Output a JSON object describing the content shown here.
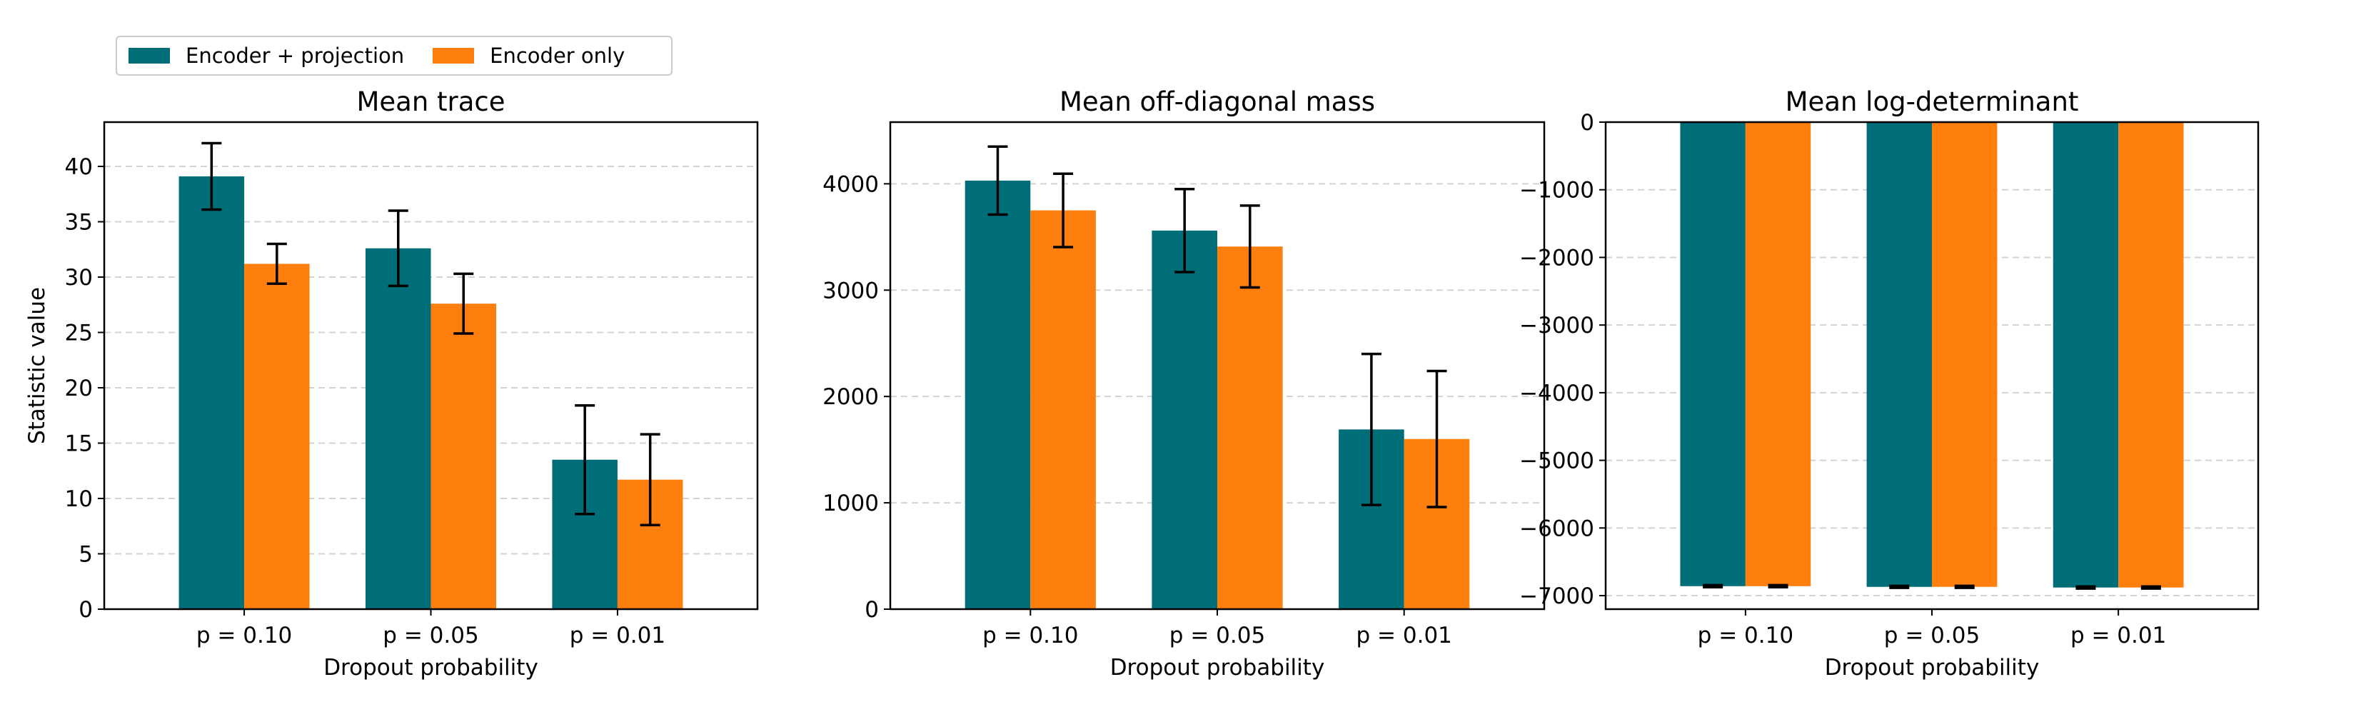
{
  "colors": {
    "series0": "#006e78",
    "series1": "#ff7f0e",
    "grid": "#d3d3d3",
    "errorbar": "#000000"
  },
  "legend": {
    "placement": "top-left",
    "items": [
      "Encoder + projection",
      "Encoder only"
    ]
  },
  "chart_data": [
    {
      "type": "bar",
      "title": "Mean trace",
      "xlabel": "Dropout probability",
      "ylabel": "Statistic value",
      "categories": [
        "p = 0.10",
        "p = 0.05",
        "p = 0.01"
      ],
      "ylim": [
        0,
        44
      ],
      "yticks": [
        0,
        5,
        10,
        15,
        20,
        25,
        30,
        35,
        40
      ],
      "grid": "y-dashed",
      "series": [
        {
          "name": "Encoder + projection",
          "values": [
            39.1,
            32.6,
            13.5
          ],
          "errors": [
            3.0,
            3.4,
            4.9
          ]
        },
        {
          "name": "Encoder only",
          "values": [
            31.2,
            27.6,
            11.7
          ],
          "errors": [
            1.8,
            2.7,
            4.1
          ]
        }
      ]
    },
    {
      "type": "bar",
      "title": "Mean off-diagonal mass",
      "xlabel": "Dropout probability",
      "ylabel": "",
      "categories": [
        "p = 0.10",
        "p = 0.05",
        "p = 0.01"
      ],
      "ylim": [
        0,
        4580
      ],
      "yticks": [
        0,
        1000,
        2000,
        3000,
        4000
      ],
      "grid": "y-dashed",
      "series": [
        {
          "name": "Encoder + projection",
          "values": [
            4030,
            3560,
            1690
          ],
          "errors": [
            320,
            390,
            710
          ]
        },
        {
          "name": "Encoder only",
          "values": [
            3750,
            3410,
            1600
          ],
          "errors": [
            345,
            385,
            640
          ]
        }
      ]
    },
    {
      "type": "bar",
      "title": "Mean log-determinant",
      "xlabel": "Dropout probability",
      "ylabel": "",
      "categories": [
        "p = 0.10",
        "p = 0.05",
        "p = 0.01"
      ],
      "ylim": [
        -7200,
        0
      ],
      "yticks": [
        0,
        -1000,
        -2000,
        -3000,
        -4000,
        -5000,
        -6000,
        -7000
      ],
      "grid": "y-dashed",
      "series": [
        {
          "name": "Encoder + projection",
          "values": [
            -6860,
            -6870,
            -6880
          ],
          "errors": [
            15,
            15,
            15
          ]
        },
        {
          "name": "Encoder only",
          "values": [
            -6860,
            -6870,
            -6880
          ],
          "errors": [
            15,
            15,
            15
          ]
        }
      ]
    }
  ]
}
